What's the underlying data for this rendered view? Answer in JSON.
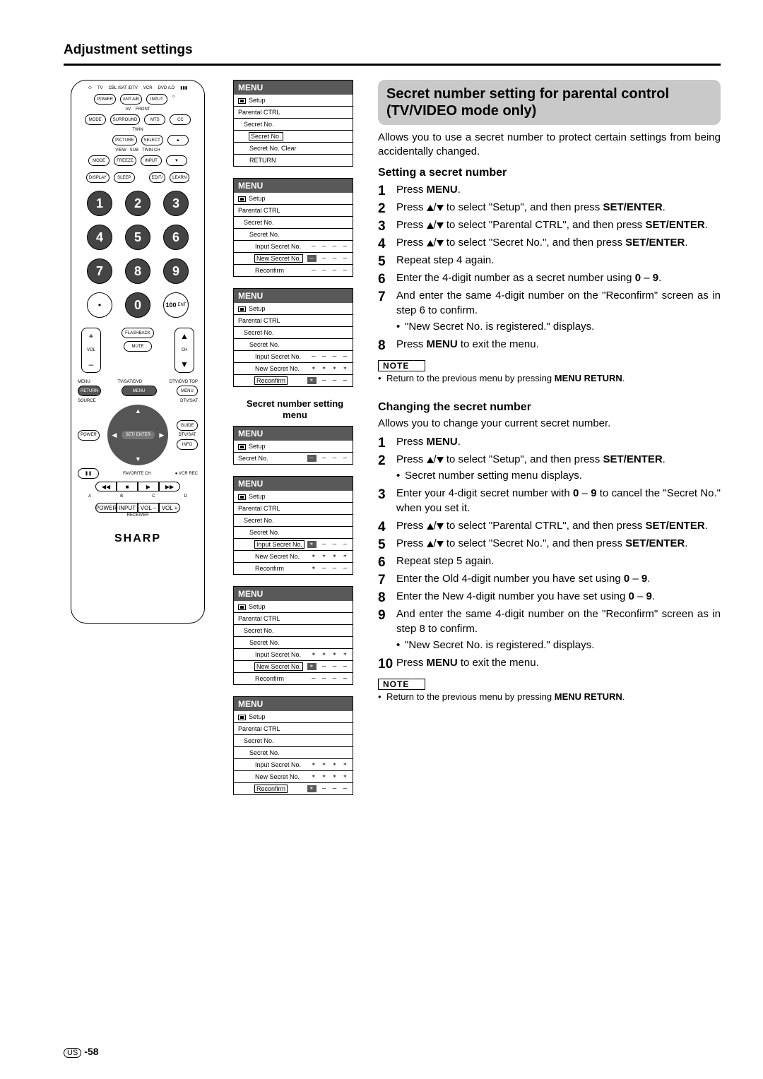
{
  "page": {
    "title": "Adjustment settings",
    "footer_region": "US",
    "footer_page": "-58"
  },
  "remote": {
    "top_modes": [
      "TV",
      "CBL\n/SAT\n/DTV",
      "VCR",
      "DVD\n/LD"
    ],
    "row1": [
      "POWER",
      "ANT A/B",
      "INPUT"
    ],
    "row2_lbls": [
      "AV",
      "FRONT"
    ],
    "row2": [
      "MODE",
      "SURROUND",
      "MTS",
      "CC"
    ],
    "row3_lbls": [
      "TWIN"
    ],
    "row3": [
      "PICTURE",
      "SELECT",
      "▲"
    ],
    "row4_lbls": [
      "VIEW",
      "SUB",
      "TWIN CH"
    ],
    "row4": [
      "MODE",
      "FREEZE",
      "INPUT",
      "▼"
    ],
    "row5": [
      "DISPLAY",
      "SLEEP",
      "EDIT/",
      "LEARN"
    ],
    "numpad": [
      "1",
      "2",
      "3",
      "4",
      "5",
      "6",
      "7",
      "8",
      "9",
      "•",
      "0",
      "100"
    ],
    "ent": "ENT",
    "flashback": "FLASHBACK",
    "vol": "VOL",
    "ch": "CH",
    "mute": "MUTE",
    "menu_lbls": [
      "MENU",
      "TV/SAT/DVD",
      "DTV/DVD TOP"
    ],
    "menu_row": [
      "RETURN",
      "MENU",
      "MENU"
    ],
    "source": "SOURCE",
    "dtvsat": "DTV/SAT",
    "power": "POWER",
    "guide": "GUIDE",
    "set_enter": "SET/\nENTER",
    "info": "INFO",
    "favorite": "FAVORITE CH",
    "vcrrec": "VCR REC",
    "pause": "❚❚",
    "transport": [
      "◀◀",
      "■",
      "▶",
      "▶▶"
    ],
    "abcd": [
      "A",
      "B",
      "C",
      "D"
    ],
    "rx": [
      "POWER",
      "INPUT",
      "VOL –",
      "VOL +"
    ],
    "receiver": "RECEIVER",
    "brand": "SHARP"
  },
  "menus": [
    {
      "hdr": "MENU",
      "rows": [
        {
          "t": "Setup",
          "icon": true
        },
        {
          "t": "Parental CTRL",
          "i": 0
        },
        {
          "t": "Secret No.",
          "i": 1
        },
        {
          "t": "Secret No.",
          "i": 2,
          "box": true
        },
        {
          "t": "Secret No. Clear",
          "i": 2
        },
        {
          "t": "RETURN",
          "i": 2
        }
      ]
    },
    {
      "hdr": "MENU",
      "rows": [
        {
          "t": "Setup",
          "icon": true
        },
        {
          "t": "Parental CTRL",
          "i": 0
        },
        {
          "t": "Secret No.",
          "i": 1
        },
        {
          "t": "Secret No.",
          "i": 2
        },
        {
          "t": "Input Secret No.",
          "i": 3,
          "v": "– – – –"
        },
        {
          "t": "New Secret No.",
          "i": 3,
          "v": "– – –",
          "hl": "–",
          "box": true
        },
        {
          "t": "Reconfirm",
          "i": 3,
          "v": "– – – –"
        }
      ]
    },
    {
      "hdr": "MENU",
      "rows": [
        {
          "t": "Setup",
          "icon": true
        },
        {
          "t": "Parental CTRL",
          "i": 0
        },
        {
          "t": "Secret No.",
          "i": 1
        },
        {
          "t": "Secret No.",
          "i": 2
        },
        {
          "t": "Input Secret No.",
          "i": 3,
          "v": "– – – –"
        },
        {
          "t": "New Secret No.",
          "i": 3,
          "v": "∗ ∗ ∗ ∗"
        },
        {
          "t": "Reconfirm",
          "i": 3,
          "v": "– – –",
          "hl": "∗",
          "box": true
        }
      ]
    }
  ],
  "secret_menu_caption": "Secret number setting menu",
  "menus2": [
    {
      "hdr": "MENU",
      "rows": [
        {
          "t": "Setup",
          "icon": true
        },
        {
          "t": "Secret No.",
          "i": 0,
          "v": "– – –",
          "hl": "–"
        }
      ]
    },
    {
      "hdr": "MENU",
      "rows": [
        {
          "t": "Setup",
          "icon": true
        },
        {
          "t": "Parental CTRL",
          "i": 0
        },
        {
          "t": "Secret No.",
          "i": 1
        },
        {
          "t": "Secret No.",
          "i": 2
        },
        {
          "t": "Input Secret No.",
          "i": 3,
          "v": "– – –",
          "hl": "∗",
          "box": true
        },
        {
          "t": "New Secret No.",
          "i": 3,
          "v": "∗ ∗ ∗ ∗"
        },
        {
          "t": "Reconfirm",
          "i": 3,
          "v": "∗ – – –"
        }
      ]
    },
    {
      "hdr": "MENU",
      "rows": [
        {
          "t": "Setup",
          "icon": true
        },
        {
          "t": "Parental CTRL",
          "i": 0
        },
        {
          "t": "Secret No.",
          "i": 1
        },
        {
          "t": "Secret No.",
          "i": 2
        },
        {
          "t": "Input Secret No.",
          "i": 3,
          "v": "∗ ∗ ∗ ∗"
        },
        {
          "t": "New Secret No.",
          "i": 3,
          "v": "– – –",
          "hl": "∗",
          "box": true
        },
        {
          "t": "Reconfirm",
          "i": 3,
          "v": "– – – –"
        }
      ]
    },
    {
      "hdr": "MENU",
      "rows": [
        {
          "t": "Setup",
          "icon": true
        },
        {
          "t": "Parental CTRL",
          "i": 0
        },
        {
          "t": "Secret No.",
          "i": 1
        },
        {
          "t": "Secret No.",
          "i": 2
        },
        {
          "t": "Input Secret No.",
          "i": 3,
          "v": "∗ ∗ ∗ ∗"
        },
        {
          "t": "New Secret No.",
          "i": 3,
          "v": "∗ ∗ ∗ ∗"
        },
        {
          "t": "Reconfirm",
          "i": 3,
          "v": "– – –",
          "hl": "∗",
          "box": true
        }
      ]
    }
  ],
  "right": {
    "feature_title": "Secret number setting for parental control (TV/VIDEO mode only)",
    "lead": "Allows you to use a secret number to protect certain settings from being accidentally changed.",
    "section1": {
      "title": "Setting a secret number",
      "steps": [
        {
          "html": "Press <b>MENU</b>."
        },
        {
          "html": "Press <span class='tri-up'></span>/<span class='tri-down'></span> to select \"Setup\", and then press <b>SET/ENTER</b>."
        },
        {
          "html": "Press <span class='tri-up'></span>/<span class='tri-down'></span> to select \"Parental CTRL\", and then press <b>SET/ENTER</b>."
        },
        {
          "html": "Press <span class='tri-up'></span>/<span class='tri-down'></span> to select \"Secret No.\", and then press <b>SET/ENTER</b>."
        },
        {
          "html": "Repeat step 4 again."
        },
        {
          "html": "Enter the 4-digit number as a secret number using <b>0</b> – <b>9</b>."
        },
        {
          "html": "And enter the same 4-digit number on the \"Reconfirm\" screen as in step 6 to confirm.",
          "sub": "\"New Secret No. is registered.\" displays."
        },
        {
          "html": "Press <b>MENU</b> to exit the menu."
        }
      ],
      "note_label": "NOTE",
      "note": "Return to the previous menu by pressing <b>MENU RETURN</b>."
    },
    "section2": {
      "title": "Changing the secret number",
      "lead": "Allows you to change your current secret number.",
      "steps": [
        {
          "html": "Press <b>MENU</b>."
        },
        {
          "html": "Press <span class='tri-up'></span>/<span class='tri-down'></span> to select \"Setup\", and then press <b>SET/ENTER</b>.",
          "sub": "Secret number setting menu displays."
        },
        {
          "html": "Enter your 4-digit secret number with <b>0</b> – <b>9</b> to cancel the \"Secret No.\" when you set it."
        },
        {
          "html": "Press <span class='tri-up'></span>/<span class='tri-down'></span> to select \"Parental CTRL\", and then press <b>SET/ENTER</b>."
        },
        {
          "html": "Press <span class='tri-up'></span>/<span class='tri-down'></span> to select \"Secret No.\", and then press <b>SET/ENTER</b>."
        },
        {
          "html": "Repeat step 5 again."
        },
        {
          "html": "Enter the Old 4-digit number you have set using <b>0</b> – <b>9</b>."
        },
        {
          "html": "Enter the New 4-digit number you have set using <b>0</b> – <b>9</b>."
        },
        {
          "html": "And enter the same 4-digit number on the \"Reconfirm\" screen as in step 8 to confirm.",
          "sub": "\"New Secret No. is registered.\" displays."
        },
        {
          "html": "Press <b>MENU</b> to exit the menu."
        }
      ],
      "note_label": "NOTE",
      "note": "Return to the previous menu by pressing <b>MENU RETURN</b>."
    }
  }
}
